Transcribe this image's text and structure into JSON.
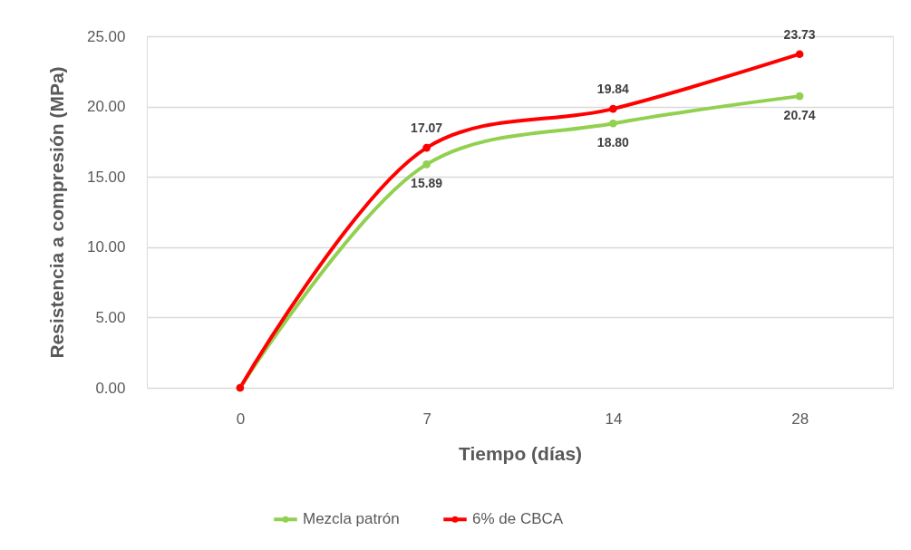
{
  "chart_data": {
    "type": "line",
    "xlabel": "Tiempo (días)",
    "ylabel": "Resistencia a compresión (MPa)",
    "categories": [
      "0",
      "7",
      "14",
      "28"
    ],
    "series": [
      {
        "name": "Mezcla patrón",
        "color": "#92d050",
        "values": [
          0,
          15.89,
          18.8,
          20.74
        ],
        "value_labels": [
          null,
          "15.89",
          "18.80",
          "20.74"
        ]
      },
      {
        "name": "6% de CBCA",
        "color": "#ff0000",
        "values": [
          0,
          17.07,
          19.84,
          23.73
        ],
        "value_labels": [
          null,
          "17.07",
          "19.84",
          "23.73"
        ]
      }
    ],
    "ylim": [
      0,
      25
    ],
    "yticks": [
      {
        "value": 0,
        "label": "0.00"
      },
      {
        "value": 5,
        "label": "5.00"
      },
      {
        "value": 10,
        "label": "10.00"
      },
      {
        "value": 15,
        "label": "15.00"
      },
      {
        "value": 20,
        "label": "20.00"
      },
      {
        "value": 25,
        "label": "25.00"
      }
    ],
    "grid": "y",
    "legend": "bottom",
    "marker": "circle",
    "line_style": "solid"
  }
}
